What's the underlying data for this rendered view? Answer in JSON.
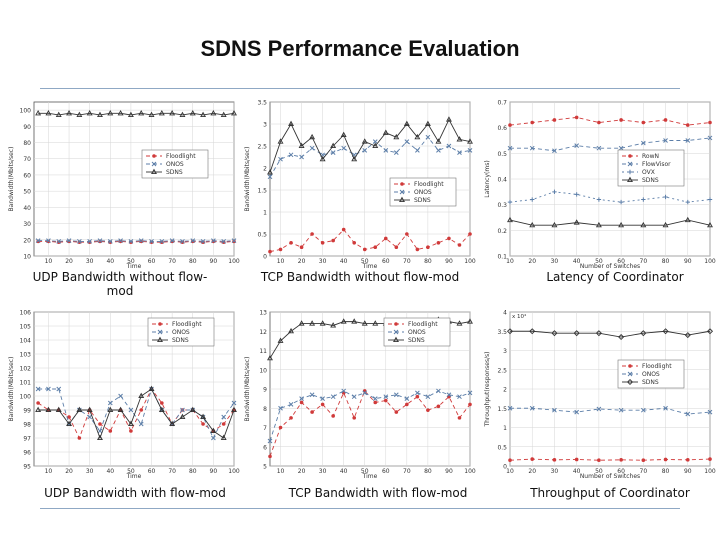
{
  "page": {
    "title": "SDNS Performance Evaluation",
    "colors": {
      "rule": "#8fa8c4"
    }
  },
  "chart_data": [
    {
      "type": "line",
      "caption": "UDP Bandwidth without flow-mod",
      "xlabel": "Time",
      "ylabel": "Bandwidth(Mbits/sec)",
      "xlim": [
        3,
        100
      ],
      "ylim": [
        10,
        105
      ],
      "xticks": [
        10,
        20,
        30,
        40,
        50,
        60,
        70,
        80,
        90,
        100
      ],
      "yticks": [
        10,
        20,
        30,
        40,
        50,
        60,
        70,
        80,
        90,
        100
      ],
      "legend_pos": "mid-right",
      "x": [
        5,
        10,
        15,
        20,
        25,
        30,
        35,
        40,
        45,
        50,
        55,
        60,
        65,
        70,
        75,
        80,
        85,
        90,
        95,
        100
      ],
      "series": [
        {
          "name": "Floodlight",
          "color": "#d03a3a",
          "marker": "dot",
          "dash": "4,3",
          "values": [
            19,
            19,
            18.5,
            19,
            18.5,
            18.5,
            19,
            18.5,
            19,
            18.5,
            19,
            18.5,
            18.5,
            19,
            18.5,
            19,
            18.5,
            19,
            18.5,
            19
          ]
        },
        {
          "name": "ONOS",
          "color": "#5c7ea8",
          "marker": "x",
          "dash": "4,3",
          "values": [
            19.5,
            19.5,
            19,
            19.5,
            19,
            19,
            19.5,
            19,
            19.5,
            19,
            19.5,
            19,
            19,
            19.5,
            19,
            19.5,
            19,
            19.5,
            19,
            19.5
          ]
        },
        {
          "name": "SDNS",
          "color": "#333333",
          "marker": "tri",
          "dash": "",
          "values": [
            98,
            98,
            97,
            98,
            97,
            98,
            97,
            98,
            98,
            97,
            98,
            97,
            98,
            98,
            97,
            98,
            97,
            98,
            97,
            98
          ]
        }
      ]
    },
    {
      "type": "line",
      "caption": "TCP Bandwidth without flow-mod",
      "xlabel": "Time",
      "ylabel": "Bandwidth(Mbits/sec)",
      "xlim": [
        5,
        100
      ],
      "ylim": [
        0,
        3.5
      ],
      "xticks": [
        10,
        20,
        30,
        40,
        50,
        60,
        70,
        80,
        90,
        100
      ],
      "yticks": [
        0,
        0.5,
        1,
        1.5,
        2,
        2.5,
        3,
        3.5
      ],
      "legend_pos": "bottom-right",
      "x": [
        5,
        10,
        15,
        20,
        25,
        30,
        35,
        40,
        45,
        50,
        55,
        60,
        65,
        70,
        75,
        80,
        85,
        90,
        95,
        100
      ],
      "series": [
        {
          "name": "Floodlight",
          "color": "#d03a3a",
          "marker": "dot",
          "dash": "4,3",
          "values": [
            0.1,
            0.15,
            0.3,
            0.2,
            0.5,
            0.3,
            0.35,
            0.6,
            0.3,
            0.15,
            0.2,
            0.4,
            0.2,
            0.5,
            0.15,
            0.2,
            0.3,
            0.4,
            0.25,
            0.5
          ]
        },
        {
          "name": "ONOS",
          "color": "#5c7ea8",
          "marker": "x",
          "dash": "4,3",
          "values": [
            1.8,
            2.2,
            2.3,
            2.25,
            2.45,
            2.3,
            2.35,
            2.45,
            2.3,
            2.4,
            2.6,
            2.4,
            2.35,
            2.6,
            2.4,
            2.7,
            2.4,
            2.5,
            2.35,
            2.4
          ]
        },
        {
          "name": "SDNS",
          "color": "#333333",
          "marker": "tri",
          "dash": "",
          "values": [
            1.9,
            2.6,
            3.0,
            2.5,
            2.7,
            2.2,
            2.5,
            2.75,
            2.2,
            2.6,
            2.5,
            2.8,
            2.7,
            3.0,
            2.7,
            3.0,
            2.6,
            3.1,
            2.65,
            2.6
          ]
        }
      ]
    },
    {
      "type": "line",
      "caption": "Latency of Coordinator",
      "xlabel": "Number of Switches",
      "ylabel": "Latency(ms)",
      "xlim": [
        10,
        100
      ],
      "ylim": [
        0.1,
        0.7
      ],
      "xticks": [
        10,
        20,
        30,
        40,
        50,
        60,
        70,
        80,
        90,
        100
      ],
      "yticks": [
        0.1,
        0.2,
        0.3,
        0.4,
        0.5,
        0.6,
        0.7
      ],
      "legend_pos": "mid-right",
      "x": [
        10,
        20,
        30,
        40,
        50,
        60,
        70,
        80,
        90,
        100
      ],
      "series": [
        {
          "name": "RowN",
          "color": "#d03a3a",
          "marker": "dot",
          "dash": "4,3",
          "values": [
            0.61,
            0.62,
            0.63,
            0.64,
            0.62,
            0.63,
            0.62,
            0.63,
            0.61,
            0.62
          ]
        },
        {
          "name": "FlowVisor",
          "color": "#5c7ea8",
          "marker": "x",
          "dash": "4,3",
          "values": [
            0.52,
            0.52,
            0.51,
            0.53,
            0.52,
            0.52,
            0.54,
            0.55,
            0.55,
            0.56
          ]
        },
        {
          "name": "OVX",
          "color": "#5c7ea8",
          "marker": "plus",
          "dash": "2,3",
          "values": [
            0.31,
            0.32,
            0.35,
            0.34,
            0.32,
            0.31,
            0.32,
            0.33,
            0.31,
            0.32
          ]
        },
        {
          "name": "SDNS",
          "color": "#333333",
          "marker": "tri",
          "dash": "",
          "values": [
            0.24,
            0.22,
            0.22,
            0.23,
            0.22,
            0.22,
            0.22,
            0.22,
            0.24,
            0.22
          ]
        }
      ]
    },
    {
      "type": "line",
      "caption": "UDP Bandwidth with flow-mod",
      "xlabel": "Time",
      "ylabel": "Bandwidth(Mbits/sec)",
      "xlim": [
        3,
        100
      ],
      "ylim": [
        95,
        106
      ],
      "xticks": [
        10,
        20,
        30,
        40,
        50,
        60,
        70,
        80,
        90,
        100
      ],
      "yticks": [
        95,
        96,
        97,
        98,
        99,
        100,
        101,
        102,
        103,
        104,
        105,
        106
      ],
      "legend_pos": "top-right",
      "x": [
        5,
        10,
        15,
        20,
        25,
        30,
        35,
        40,
        45,
        50,
        55,
        60,
        65,
        70,
        75,
        80,
        85,
        90,
        95,
        100
      ],
      "series": [
        {
          "name": "Floodlight",
          "color": "#d03a3a",
          "marker": "dot",
          "dash": "4,3",
          "values": [
            99.5,
            99,
            99,
            98.5,
            97,
            99,
            98,
            97.5,
            99,
            97.5,
            99,
            100.5,
            99.5,
            98,
            99,
            99,
            98,
            97.5,
            98,
            99
          ]
        },
        {
          "name": "ONOS",
          "color": "#5c7ea8",
          "marker": "x",
          "dash": "4,3",
          "values": [
            100.5,
            100.5,
            100.5,
            98,
            99,
            98.5,
            97.5,
            99.5,
            100,
            99,
            98,
            100.5,
            99,
            98,
            99,
            99,
            98.5,
            97,
            98.5,
            99.5
          ]
        },
        {
          "name": "SDNS",
          "color": "#333333",
          "marker": "tri",
          "dash": "",
          "values": [
            99,
            99,
            99,
            98,
            99,
            99,
            97,
            99,
            99,
            98,
            100,
            100.5,
            99,
            98,
            98.5,
            99,
            98.5,
            97.5,
            97,
            99
          ]
        }
      ]
    },
    {
      "type": "line",
      "caption": "TCP Bandwidth with flow-mod",
      "xlabel": "Time",
      "ylabel": "Bandwidth(Mbits/sec)",
      "xlim": [
        5,
        100
      ],
      "ylim": [
        5,
        13
      ],
      "xticks": [
        10,
        20,
        30,
        40,
        50,
        60,
        70,
        80,
        90,
        100
      ],
      "yticks": [
        5,
        6,
        7,
        8,
        9,
        10,
        11,
        12,
        13
      ],
      "legend_pos": "top-right",
      "x": [
        5,
        10,
        15,
        20,
        25,
        30,
        35,
        40,
        45,
        50,
        55,
        60,
        65,
        70,
        75,
        80,
        85,
        90,
        95,
        100
      ],
      "series": [
        {
          "name": "Floodlight",
          "color": "#d03a3a",
          "marker": "dot",
          "dash": "4,3",
          "values": [
            5.5,
            7,
            7.5,
            8.3,
            7.8,
            8.2,
            7.6,
            8.8,
            7.5,
            8.9,
            8.3,
            8.4,
            7.8,
            8.2,
            8.6,
            7.9,
            8.1,
            8.6,
            7.5,
            8.2
          ]
        },
        {
          "name": "ONOS",
          "color": "#5c7ea8",
          "marker": "x",
          "dash": "4,3",
          "values": [
            6.3,
            8.0,
            8.2,
            8.5,
            8.7,
            8.5,
            8.6,
            8.9,
            8.6,
            8.8,
            8.5,
            8.6,
            8.7,
            8.5,
            8.8,
            8.6,
            8.9,
            8.7,
            8.6,
            8.8
          ]
        },
        {
          "name": "SDNS",
          "color": "#333333",
          "marker": "tri",
          "dash": "",
          "values": [
            10.6,
            11.5,
            12.0,
            12.4,
            12.4,
            12.4,
            12.3,
            12.5,
            12.5,
            12.4,
            12.4,
            12.4,
            12.5,
            12.4,
            12.4,
            12.5,
            12.6,
            12.5,
            12.4,
            12.5
          ]
        }
      ]
    },
    {
      "type": "line",
      "caption": "Throughput of Coordinator",
      "xlabel": "Number of Switches",
      "ylabel": "Throughput(responses/s)",
      "exponent_label": "x 10⁴",
      "xlim": [
        10,
        100
      ],
      "ylim": [
        0,
        4
      ],
      "xticks": [
        10,
        20,
        30,
        40,
        50,
        60,
        70,
        80,
        90,
        100
      ],
      "yticks": [
        0,
        0.5,
        1,
        1.5,
        2,
        2.5,
        3,
        3.5,
        4
      ],
      "legend_pos": "mid-right",
      "x": [
        10,
        20,
        30,
        40,
        50,
        60,
        70,
        80,
        90,
        100
      ],
      "series": [
        {
          "name": "Floodlight",
          "color": "#d03a3a",
          "marker": "dot",
          "dash": "4,3",
          "values": [
            0.15,
            0.18,
            0.16,
            0.17,
            0.15,
            0.16,
            0.15,
            0.17,
            0.16,
            0.18
          ]
        },
        {
          "name": "ONOS",
          "color": "#5c7ea8",
          "marker": "x",
          "dash": "4,3",
          "values": [
            1.5,
            1.5,
            1.45,
            1.4,
            1.48,
            1.45,
            1.45,
            1.5,
            1.35,
            1.4
          ]
        },
        {
          "name": "SDNS",
          "color": "#333333",
          "marker": "diamond",
          "dash": "",
          "values": [
            3.5,
            3.5,
            3.45,
            3.45,
            3.45,
            3.35,
            3.45,
            3.5,
            3.4,
            3.5
          ]
        }
      ]
    }
  ]
}
